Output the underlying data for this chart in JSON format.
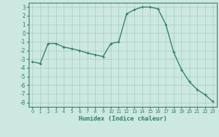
{
  "x": [
    0,
    1,
    2,
    3,
    4,
    5,
    6,
    7,
    8,
    9,
    10,
    11,
    12,
    13,
    14,
    15,
    16,
    17,
    18,
    19,
    20,
    21,
    22,
    23
  ],
  "y": [
    -3.3,
    -3.5,
    -1.2,
    -1.2,
    -1.6,
    -1.8,
    -2.0,
    -2.3,
    -2.5,
    -2.7,
    -1.2,
    -1.0,
    2.2,
    2.7,
    3.0,
    3.0,
    2.8,
    1.0,
    -2.2,
    -4.2,
    -5.6,
    -6.5,
    -7.1,
    -7.9
  ],
  "xlabel": "Humidex (Indice chaleur)",
  "ylim": [
    -8.5,
    3.5
  ],
  "xlim": [
    -0.5,
    23.5
  ],
  "yticks": [
    -8,
    -7,
    -6,
    -5,
    -4,
    -3,
    -2,
    -1,
    0,
    1,
    2,
    3
  ],
  "xticks": [
    0,
    1,
    2,
    3,
    4,
    5,
    6,
    7,
    8,
    9,
    10,
    11,
    12,
    13,
    14,
    15,
    16,
    17,
    18,
    19,
    20,
    21,
    22,
    23
  ],
  "line_color": "#2e7d6e",
  "bg_color": "#cce8e0",
  "grid_color": "#aacfc8",
  "marker": "+"
}
